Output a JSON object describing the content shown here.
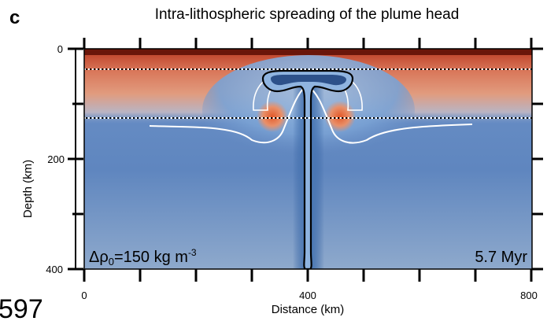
{
  "panel_label": "c",
  "title": "Intra-lithospheric spreading of the plume head",
  "axes": {
    "x_label": "Distance (km)",
    "y_label": "Depth (km)",
    "x_ticks": [
      "0",
      "400",
      "800"
    ],
    "y_ticks": [
      "0",
      "200",
      "400"
    ]
  },
  "annotations": {
    "density_prefix": "Δρ",
    "density_subscript": "0",
    "density_value": "=150 kg m",
    "density_exponent": "-3",
    "time": "5.7 Myr"
  },
  "corner_text": "597",
  "colors": {
    "mantle_blue": "#5f86bf",
    "lithosphere_red": "#d0704a",
    "crust_dark": "#7a1e10",
    "hot_spot": "#e06a3a"
  }
}
